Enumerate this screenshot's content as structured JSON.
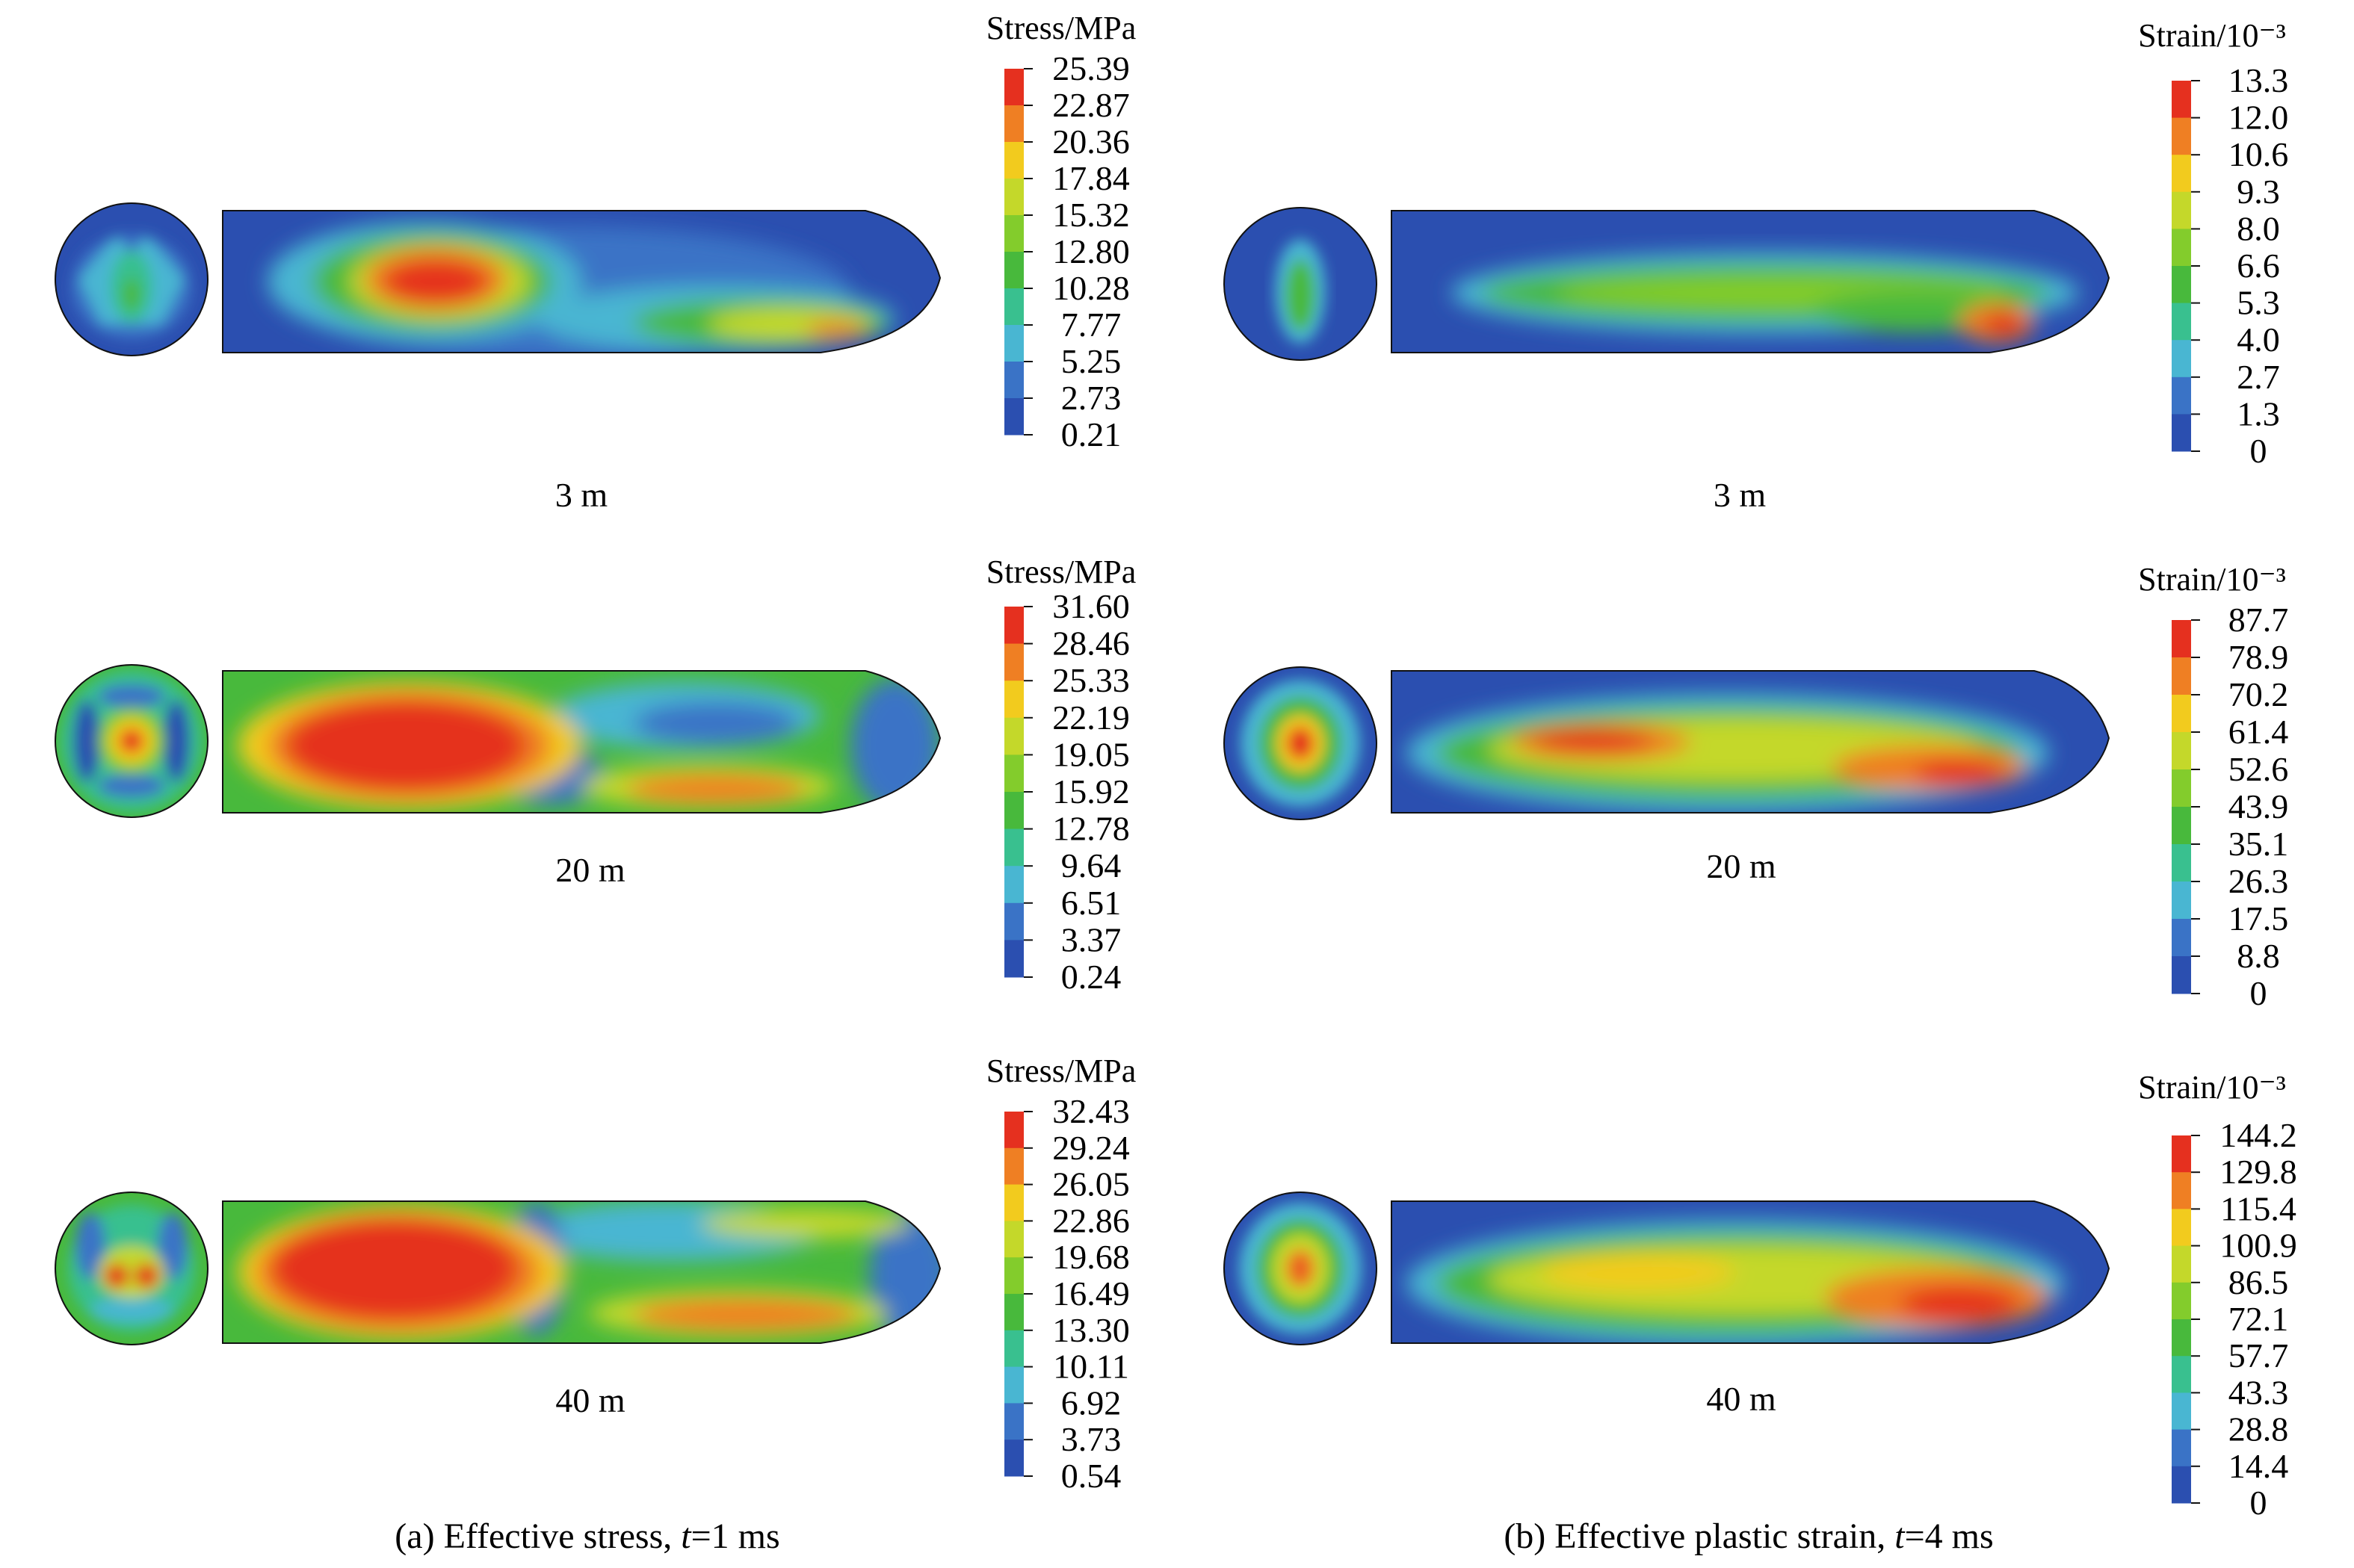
{
  "palette": [
    "#2b4fb0",
    "#3a73c6",
    "#49b6d2",
    "#39c08f",
    "#48b93c",
    "#83cc2c",
    "#c4d82a",
    "#f2cb1e",
    "#ef7f23",
    "#e5301f"
  ],
  "panels": [
    {
      "id": "a",
      "caption": "(a) Effective stress, t=1 ms",
      "caption_prefix": "(a) Effective stress, ",
      "caption_var": "t",
      "caption_suffix": "=1 ms",
      "rows": [
        {
          "distance": "3 m",
          "legend_title": "Stress/MPa",
          "ticks": [
            "25.39",
            "22.87",
            "20.36",
            "17.84",
            "15.32",
            "12.80",
            "10.28",
            "7.77",
            "5.25",
            "2.73",
            "0.21"
          ]
        },
        {
          "distance": "20 m",
          "legend_title": "Stress/MPa",
          "ticks": [
            "31.60",
            "28.46",
            "25.33",
            "22.19",
            "19.05",
            "15.92",
            "12.78",
            "9.64",
            "6.51",
            "3.37",
            "0.24"
          ]
        },
        {
          "distance": "40 m",
          "legend_title": "Stress/MPa",
          "ticks": [
            "32.43",
            "29.24",
            "26.05",
            "22.86",
            "19.68",
            "16.49",
            "13.30",
            "10.11",
            "6.92",
            "3.73",
            "0.54"
          ]
        }
      ]
    },
    {
      "id": "b",
      "caption": "(b) Effective plastic strain, t=4 ms",
      "caption_prefix": "(b) Effective plastic strain, ",
      "caption_var": "t",
      "caption_suffix": "=4 ms",
      "rows": [
        {
          "distance": "3 m",
          "legend_title": "Strain/10⁻³",
          "ticks": [
            "13.3",
            "12.0",
            "10.6",
            "9.3",
            "8.0",
            "6.6",
            "5.3",
            "4.0",
            "2.7",
            "1.3",
            "0"
          ]
        },
        {
          "distance": "20 m",
          "legend_title": "Strain/10⁻³",
          "ticks": [
            "87.7",
            "78.9",
            "70.2",
            "61.4",
            "52.6",
            "43.9",
            "35.1",
            "26.3",
            "17.5",
            "8.8",
            "0"
          ]
        },
        {
          "distance": "40 m",
          "legend_title": "Strain/10⁻³",
          "ticks": [
            "144.2",
            "129.8",
            "115.4",
            "100.9",
            "86.5",
            "72.1",
            "57.7",
            "43.3",
            "28.8",
            "14.4",
            "0"
          ]
        }
      ]
    }
  ]
}
